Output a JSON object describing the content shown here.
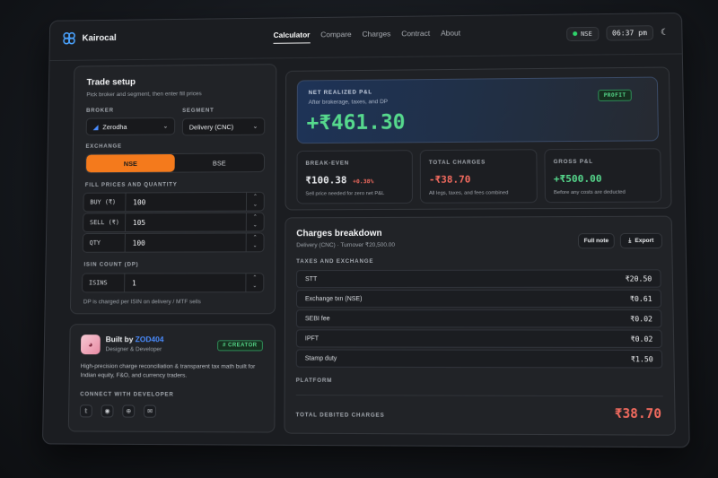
{
  "header": {
    "brand": "Kairocal",
    "nav": [
      "Calculator",
      "Compare",
      "Charges",
      "Contract",
      "About"
    ],
    "market": "NSE",
    "time": "06:37 pm"
  },
  "trade": {
    "title": "Trade setup",
    "subtitle": "Pick broker and segment, then enter fill prices",
    "broker_label": "BROKER",
    "broker": "Zerodha",
    "segment_label": "SEGMENT",
    "segment": "Delivery (CNC)",
    "exchange_label": "EXCHANGE",
    "exchanges": [
      "NSE",
      "BSE"
    ],
    "fill_label": "FILL PRICES AND QUANTITY",
    "buy_key": "BUY (₹)",
    "buy": "100",
    "sell_key": "SELL (₹)",
    "sell": "105",
    "qty_key": "QTY",
    "qty": "100",
    "isin_label": "ISIN COUNT (DP)",
    "isin_key": "ISINS",
    "isin": "1",
    "dp_note": "DP is charged per ISIN on delivery / MTF sells"
  },
  "creator": {
    "built_by": "Built by",
    "handle": "ZOD404",
    "role": "Designer & Developer",
    "badge": "# CREATOR",
    "desc": "High-precision charge reconciliation & transparent tax math built for Indian equity, F&O, and currency traders.",
    "connect": "CONNECT WITH DEVELOPER"
  },
  "pnl": {
    "label": "NET REALIZED P&L",
    "sub": "After brokerage, taxes, and DP",
    "value": "+₹461.30",
    "badge": "PROFIT"
  },
  "stats": [
    {
      "label": "BREAK-EVEN",
      "value": "₹100.38",
      "delta": "+0.38%",
      "note": "Sell price needed for zero net P&L"
    },
    {
      "label": "TOTAL CHARGES",
      "value": "-₹38.70",
      "note": "All legs, taxes, and fees combined"
    },
    {
      "label": "GROSS P&L",
      "value": "+₹500.00",
      "note": "Before any costs are deducted"
    }
  ],
  "breakdown": {
    "title": "Charges breakdown",
    "sub": "Delivery (CNC) · Turnover ₹20,500.00",
    "full_note": "Full note",
    "export": "Export",
    "taxes_label": "TAXES AND EXCHANGE",
    "rows": [
      {
        "name": "STT",
        "amount": "₹20.50"
      },
      {
        "name": "Exchange txn (NSE)",
        "amount": "₹0.61"
      },
      {
        "name": "SEBI fee",
        "amount": "₹0.02"
      },
      {
        "name": "IPFT",
        "amount": "₹0.02"
      },
      {
        "name": "Stamp duty",
        "amount": "₹1.50"
      }
    ],
    "platform_label": "PLATFORM",
    "total_label": "TOTAL DEBITED CHARGES",
    "total": "₹38.70"
  },
  "colors": {
    "accent": "#f47a1c",
    "profit": "#56d98d",
    "loss": "#f36b5f",
    "link": "#4a8cff"
  }
}
